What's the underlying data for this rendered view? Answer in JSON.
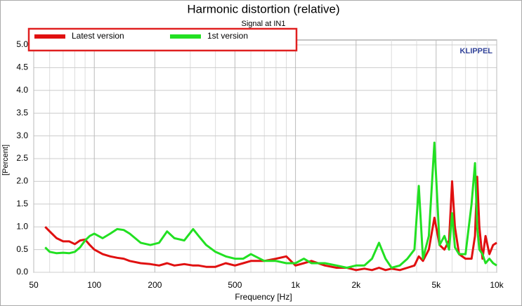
{
  "chart_data": {
    "type": "line",
    "title": "Harmonic distortion (relative)",
    "subtitle": "Signal at IN1",
    "watermark": "KLIPPEL",
    "xlabel": "Frequency [Hz]",
    "ylabel": "[Percent]",
    "xscale": "log",
    "grid": true,
    "legend": "top-left",
    "xlim": [
      50,
      10000
    ],
    "ylim": [
      0,
      5
    ],
    "xticks": [
      50,
      100,
      200,
      500,
      {
        "value": 1000,
        "label": "1k"
      },
      {
        "value": 2000,
        "label": "2k"
      },
      {
        "value": 5000,
        "label": "5k"
      },
      {
        "value": 10000,
        "label": "10k"
      }
    ],
    "xminorticks": [
      60,
      70,
      80,
      90,
      300,
      400,
      600,
      700,
      800,
      900,
      3000,
      4000,
      6000,
      7000,
      8000,
      9000
    ],
    "yticks": [
      {
        "value": 0,
        "label": "0.0"
      },
      0.5,
      {
        "value": 1,
        "label": "1.0"
      },
      1.5,
      {
        "value": 2,
        "label": "2.0"
      },
      2.5,
      {
        "value": 3,
        "label": "3.0"
      },
      3.5,
      {
        "value": 4,
        "label": "4.0"
      },
      4.5,
      {
        "value": 5,
        "label": "5.0"
      }
    ],
    "x": [
      57,
      60,
      65,
      70,
      75,
      80,
      85,
      90,
      95,
      100,
      110,
      120,
      130,
      140,
      150,
      170,
      190,
      210,
      230,
      250,
      280,
      310,
      330,
      360,
      400,
      450,
      500,
      550,
      600,
      700,
      800,
      900,
      1000,
      1100,
      1200,
      1400,
      1600,
      1800,
      2000,
      2200,
      2400,
      2600,
      2800,
      3000,
      3300,
      3600,
      3900,
      4100,
      4300,
      4600,
      4900,
      5200,
      5500,
      5800,
      6000,
      6200,
      6500,
      7000,
      7500,
      7800,
      8000,
      8200,
      8500,
      8800,
      9200,
      9600,
      10000
    ],
    "series": [
      {
        "name": "Latest version",
        "color": "#e01010",
        "values": [
          1.0,
          0.9,
          0.75,
          0.68,
          0.68,
          0.62,
          0.7,
          0.72,
          0.6,
          0.5,
          0.4,
          0.35,
          0.32,
          0.3,
          0.25,
          0.2,
          0.18,
          0.15,
          0.2,
          0.15,
          0.18,
          0.15,
          0.15,
          0.12,
          0.12,
          0.2,
          0.15,
          0.2,
          0.25,
          0.25,
          0.3,
          0.35,
          0.15,
          0.2,
          0.25,
          0.15,
          0.1,
          0.1,
          0.05,
          0.08,
          0.05,
          0.1,
          0.05,
          0.08,
          0.05,
          0.1,
          0.15,
          0.35,
          0.25,
          0.5,
          1.2,
          0.6,
          0.5,
          0.7,
          2.0,
          1.0,
          0.4,
          0.3,
          0.3,
          0.8,
          2.1,
          1.0,
          0.3,
          0.8,
          0.4,
          0.6,
          0.65
        ]
      },
      {
        "name": "1st version",
        "color": "#22e022",
        "values": [
          0.55,
          0.45,
          0.42,
          0.43,
          0.42,
          0.45,
          0.55,
          0.7,
          0.8,
          0.85,
          0.75,
          0.85,
          0.95,
          0.93,
          0.85,
          0.65,
          0.6,
          0.65,
          0.9,
          0.75,
          0.7,
          0.95,
          0.8,
          0.6,
          0.45,
          0.35,
          0.3,
          0.3,
          0.4,
          0.25,
          0.25,
          0.2,
          0.2,
          0.3,
          0.2,
          0.2,
          0.15,
          0.1,
          0.15,
          0.15,
          0.3,
          0.65,
          0.3,
          0.1,
          0.15,
          0.3,
          0.5,
          1.9,
          0.3,
          0.8,
          2.85,
          0.6,
          0.8,
          0.5,
          1.3,
          0.55,
          0.4,
          0.4,
          1.5,
          2.4,
          1.0,
          0.5,
          0.4,
          0.2,
          0.3,
          0.2,
          0.15
        ]
      }
    ]
  }
}
